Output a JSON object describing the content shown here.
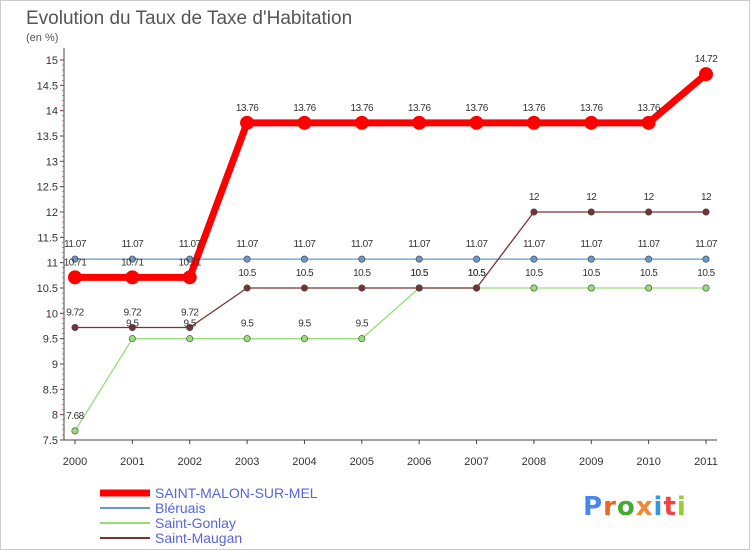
{
  "chart_data": {
    "type": "line",
    "title": "Evolution du Taux de Taxe d'Habitation",
    "subtitle": "(en %)",
    "categories": [
      "2000",
      "2001",
      "2002",
      "2003",
      "2004",
      "2005",
      "2006",
      "2007",
      "2008",
      "2009",
      "2010",
      "2011"
    ],
    "ylim": [
      7.5,
      15
    ],
    "yticks": [
      7.5,
      8,
      8.5,
      9,
      9.5,
      10,
      10.5,
      11,
      11.5,
      12,
      12.5,
      13,
      13.5,
      14,
      14.5,
      15
    ],
    "ytick_labels": [
      "7.5",
      "8",
      "8.5",
      "9",
      "9.5",
      "10",
      "10.5",
      "11",
      "11.5",
      "12",
      "12.5",
      "13",
      "13.5",
      "14",
      "14.5",
      "15"
    ],
    "series": [
      {
        "name": "SAINT-MALON-SUR-MEL",
        "color": "#ff0000",
        "values": [
          10.71,
          10.71,
          10.71,
          13.76,
          13.76,
          13.76,
          13.76,
          13.76,
          13.76,
          13.76,
          13.76,
          14.72
        ],
        "labels": [
          "10.71",
          "10.71",
          "10.71",
          "13.76",
          "13.76",
          "13.76",
          "13.76",
          "13.76",
          "13.76",
          "13.76",
          "13.76",
          "14.72"
        ]
      },
      {
        "name": "Bléruais",
        "color": "#6699cc",
        "values": [
          11.07,
          11.07,
          11.07,
          11.07,
          11.07,
          11.07,
          11.07,
          11.07,
          11.07,
          11.07,
          11.07,
          11.07
        ],
        "labels": [
          "11.07",
          "11.07",
          "11.07",
          "11.07",
          "11.07",
          "11.07",
          "11.07",
          "11.07",
          "11.07",
          "11.07",
          "11.07",
          "11.07"
        ]
      },
      {
        "name": "Saint-Gonlay",
        "color": "#99dd77",
        "values": [
          7.68,
          9.5,
          9.5,
          9.5,
          9.5,
          9.5,
          10.5,
          10.5,
          10.5,
          10.5,
          10.5,
          10.5
        ],
        "labels": [
          "7.68",
          "9.5",
          "9.5",
          "9.5",
          "9.5",
          "9.5",
          "10.5",
          "10.5",
          "10.5",
          "10.5",
          "10.5",
          "10.5"
        ]
      },
      {
        "name": "Saint-Maugan",
        "color": "#773333",
        "values": [
          9.72,
          9.72,
          9.72,
          10.5,
          10.5,
          10.5,
          10.5,
          10.5,
          12,
          12,
          12,
          12
        ],
        "labels": [
          "9.72",
          "9.72",
          "9.72",
          "10.5",
          "10.5",
          "10.5",
          "10.5",
          "10.5",
          "12",
          "12",
          "12",
          "12"
        ]
      }
    ],
    "grid": false,
    "legend_position": "bottom-left"
  },
  "logo": {
    "text": "Proxiti"
  }
}
